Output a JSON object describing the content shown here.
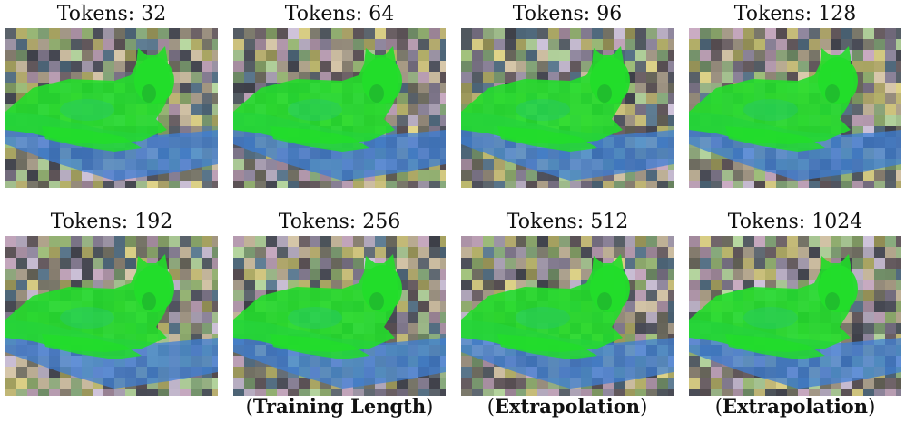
{
  "panels": [
    {
      "title": "Tokens: 32",
      "caption_bold": ""
    },
    {
      "title": "Tokens: 64",
      "caption_bold": ""
    },
    {
      "title": "Tokens: 96",
      "caption_bold": ""
    },
    {
      "title": "Tokens: 128",
      "caption_bold": ""
    },
    {
      "title": "Tokens: 192",
      "caption_bold": ""
    },
    {
      "title": "Tokens: 256",
      "caption_bold": "Training Length"
    },
    {
      "title": "Tokens: 512",
      "caption_bold": "Extrapolation"
    },
    {
      "title": "Tokens: 1024",
      "caption_bold": "Extrapolation"
    }
  ],
  "colors": {
    "cat_green": "#22dd2a",
    "cat_edge_blue": "#3d7fd6",
    "background_dark": "#4a4a52"
  }
}
